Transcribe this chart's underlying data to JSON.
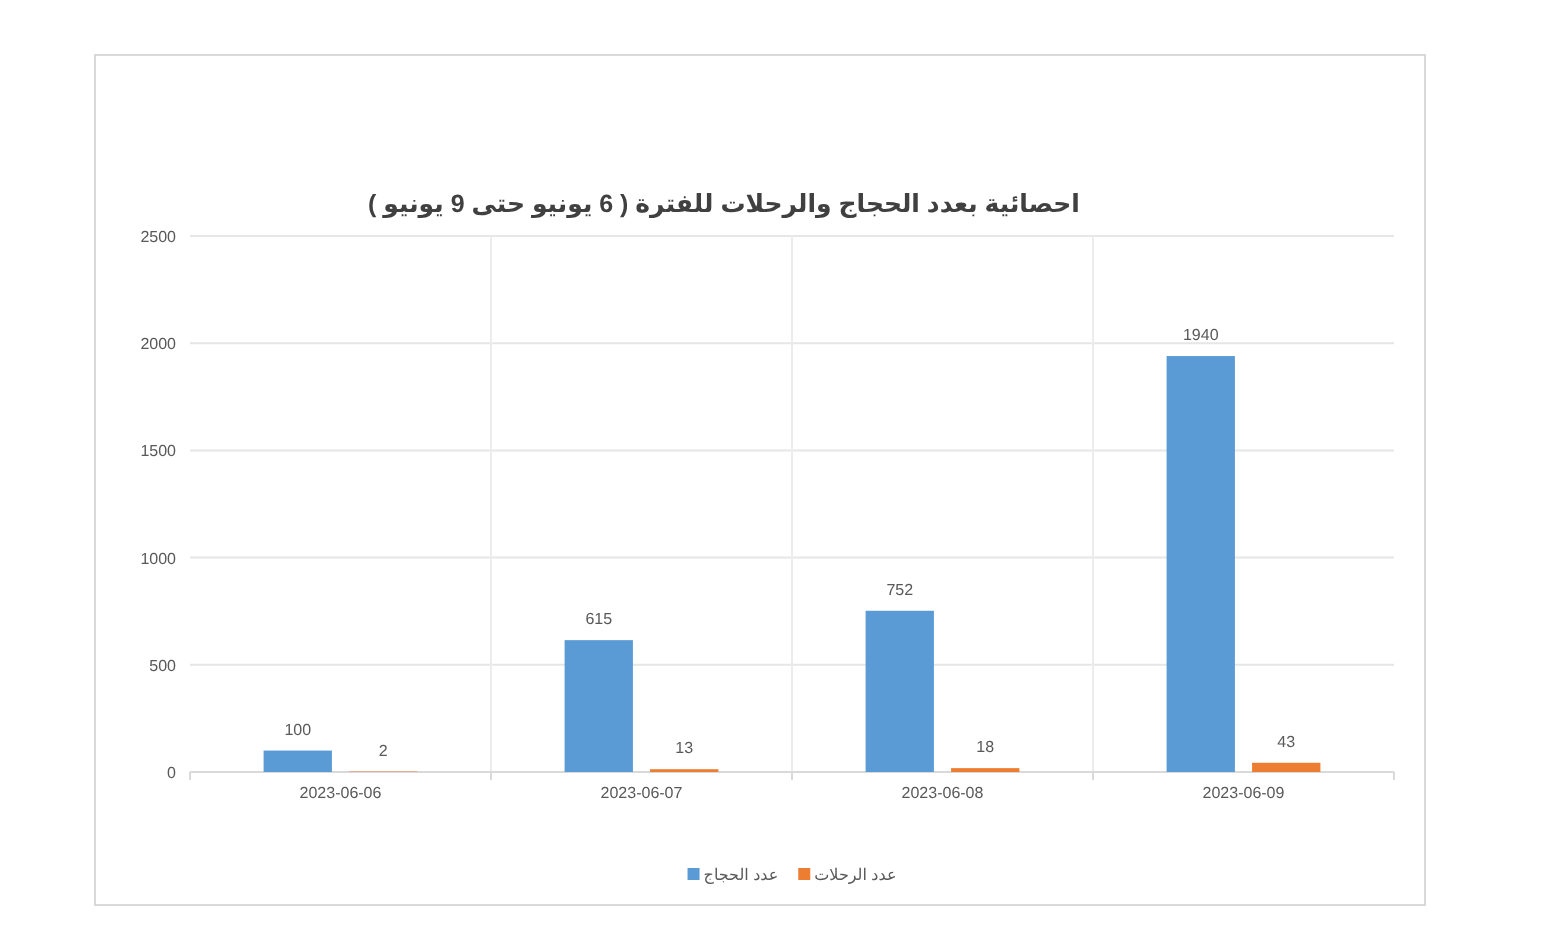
{
  "chart_data": {
    "type": "bar",
    "title": "احصائية بعدد الحجاج والرحلات للفترة ( 6 يونيو حتى 9 يونيو )",
    "categories": [
      "2023-06-06",
      "2023-06-07",
      "2023-06-08",
      "2023-06-09"
    ],
    "series": [
      {
        "name": "عدد الحجاج",
        "color": "#5b9bd5",
        "values": [
          100,
          615,
          752,
          1940
        ]
      },
      {
        "name": "عدد الرحلات",
        "color": "#ed7d31",
        "values": [
          2,
          13,
          18,
          43
        ]
      }
    ],
    "ylim": [
      0,
      2500
    ],
    "yticks": [
      0,
      500,
      1000,
      1500,
      2000,
      2500
    ],
    "grid": true,
    "legend": "bottom",
    "data_labels": true
  }
}
